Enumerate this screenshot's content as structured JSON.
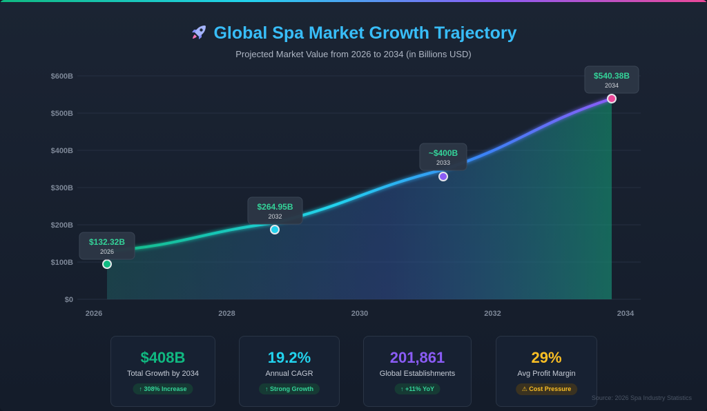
{
  "header": {
    "title": "Global Spa Market Growth Trajectory",
    "subtitle": "Projected Market Value from 2026 to 2034 (in Billions USD)",
    "icon": "rocket-icon"
  },
  "chart_data": {
    "type": "area",
    "title": "Global Spa Market Growth Trajectory",
    "subtitle": "Projected Market Value from 2026 to 2034 (in Billions USD)",
    "xlabel": "",
    "ylabel": "",
    "x_ticks": [
      "2026",
      "2028",
      "2030",
      "2032",
      "2034"
    ],
    "y_ticks": [
      "$0",
      "$100B",
      "$200B",
      "$300B",
      "$400B",
      "$500B",
      "$600B"
    ],
    "ylim": [
      0,
      600
    ],
    "xlim": [
      2026,
      2034
    ],
    "grid": true,
    "points": [
      {
        "x": 2026,
        "y": 132.32,
        "label": "$132.32B",
        "year_label": "2026"
      },
      {
        "x": 2032,
        "y": 264.95,
        "label": "$264.95B",
        "year_label": "2032"
      },
      {
        "x": 2033,
        "y": 400,
        "label": "~$400B",
        "year_label": "2033"
      },
      {
        "x": 2034,
        "y": 540.38,
        "label": "$540.38B",
        "year_label": "2034"
      }
    ],
    "colors": {
      "line_start": "#10b981",
      "line_mid": "#22d3ee",
      "line_end": "#8b5cf6",
      "marker_1": "#10b981",
      "marker_2": "#22d3ee",
      "marker_3": "#8b5cf6",
      "marker_4": "#ec4899"
    }
  },
  "stats": [
    {
      "value": "$408B",
      "label": "Total Growth by 2034",
      "badge": "↑ 308% Increase",
      "color": "#10b981",
      "badge_style": "green"
    },
    {
      "value": "19.2%",
      "label": "Annual CAGR",
      "badge": "↑ Strong Growth",
      "color": "#22d3ee",
      "badge_style": "green"
    },
    {
      "value": "201,861",
      "label": "Global Establishments",
      "badge": "↑ +11% YoY",
      "color": "#8b5cf6",
      "badge_style": "green"
    },
    {
      "value": "29%",
      "label": "Avg Profit Margin",
      "badge": "⚠ Cost Pressure",
      "color": "#fbbf24",
      "badge_style": "amber"
    }
  ],
  "footer": {
    "source": "Source: 2026 Spa Industry Statistics"
  }
}
